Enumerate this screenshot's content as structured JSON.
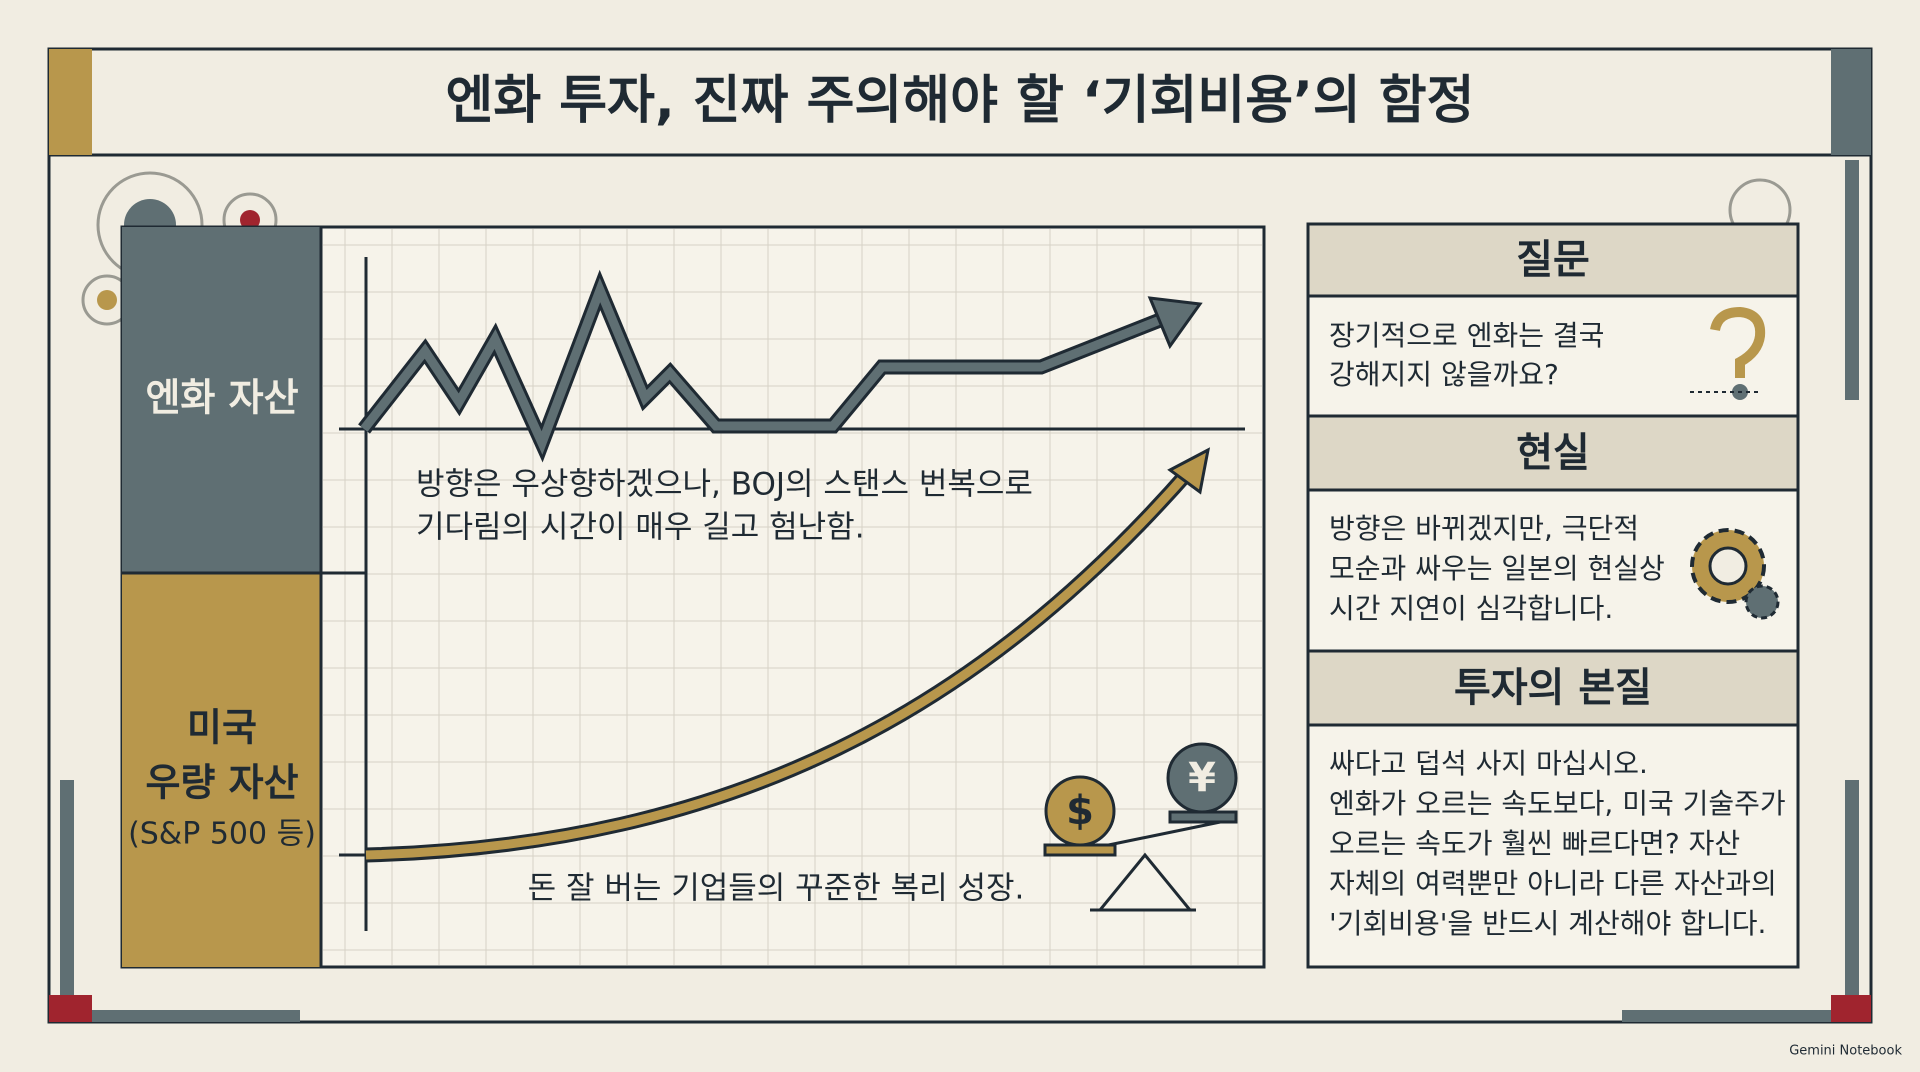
{
  "header": {
    "title": "엔화 투자, 진짜 주의해야 할 ‘기회비용’의 함정"
  },
  "chart": {
    "rows": [
      {
        "label": [
          "엔화 자산"
        ],
        "annotation": [
          "방향은 우상향하겠으나, BOJ의 스탠스 번복으로",
          "기다림의 시간이 매우 길고 험난함."
        ]
      },
      {
        "label": [
          "미국",
          "우량 자산",
          "(S&P 500 등)"
        ],
        "annotation": [
          "돈 잘 버는 기업들의 꾸준한 복리 성장."
        ]
      }
    ],
    "symbols": [
      "$",
      "¥"
    ]
  },
  "panels": [
    {
      "heading": "질문",
      "body": [
        "장기적으로 엔화는 결국",
        "강해지지 않을까요?"
      ]
    },
    {
      "heading": "현실",
      "body": [
        "방향은 바뀌겠지만, 극단적",
        "모순과 싸우는 일본의 현실상",
        "시간 지연이 심각합니다."
      ]
    },
    {
      "heading": "투자의 본질",
      "body": [
        "싸다고 덥석 사지 마십시오.",
        "엔화가 오르는 속도보다, 미국 기술주가",
        "오르는 속도가 훨씬 빠르다면? 자산",
        "자체의 여력뿐만 아니라 다른 자산과의",
        "'기회비용'을 반드시 계산해야 합니다."
      ]
    }
  ],
  "footer": {
    "watermark": "Gemini Notebook"
  }
}
